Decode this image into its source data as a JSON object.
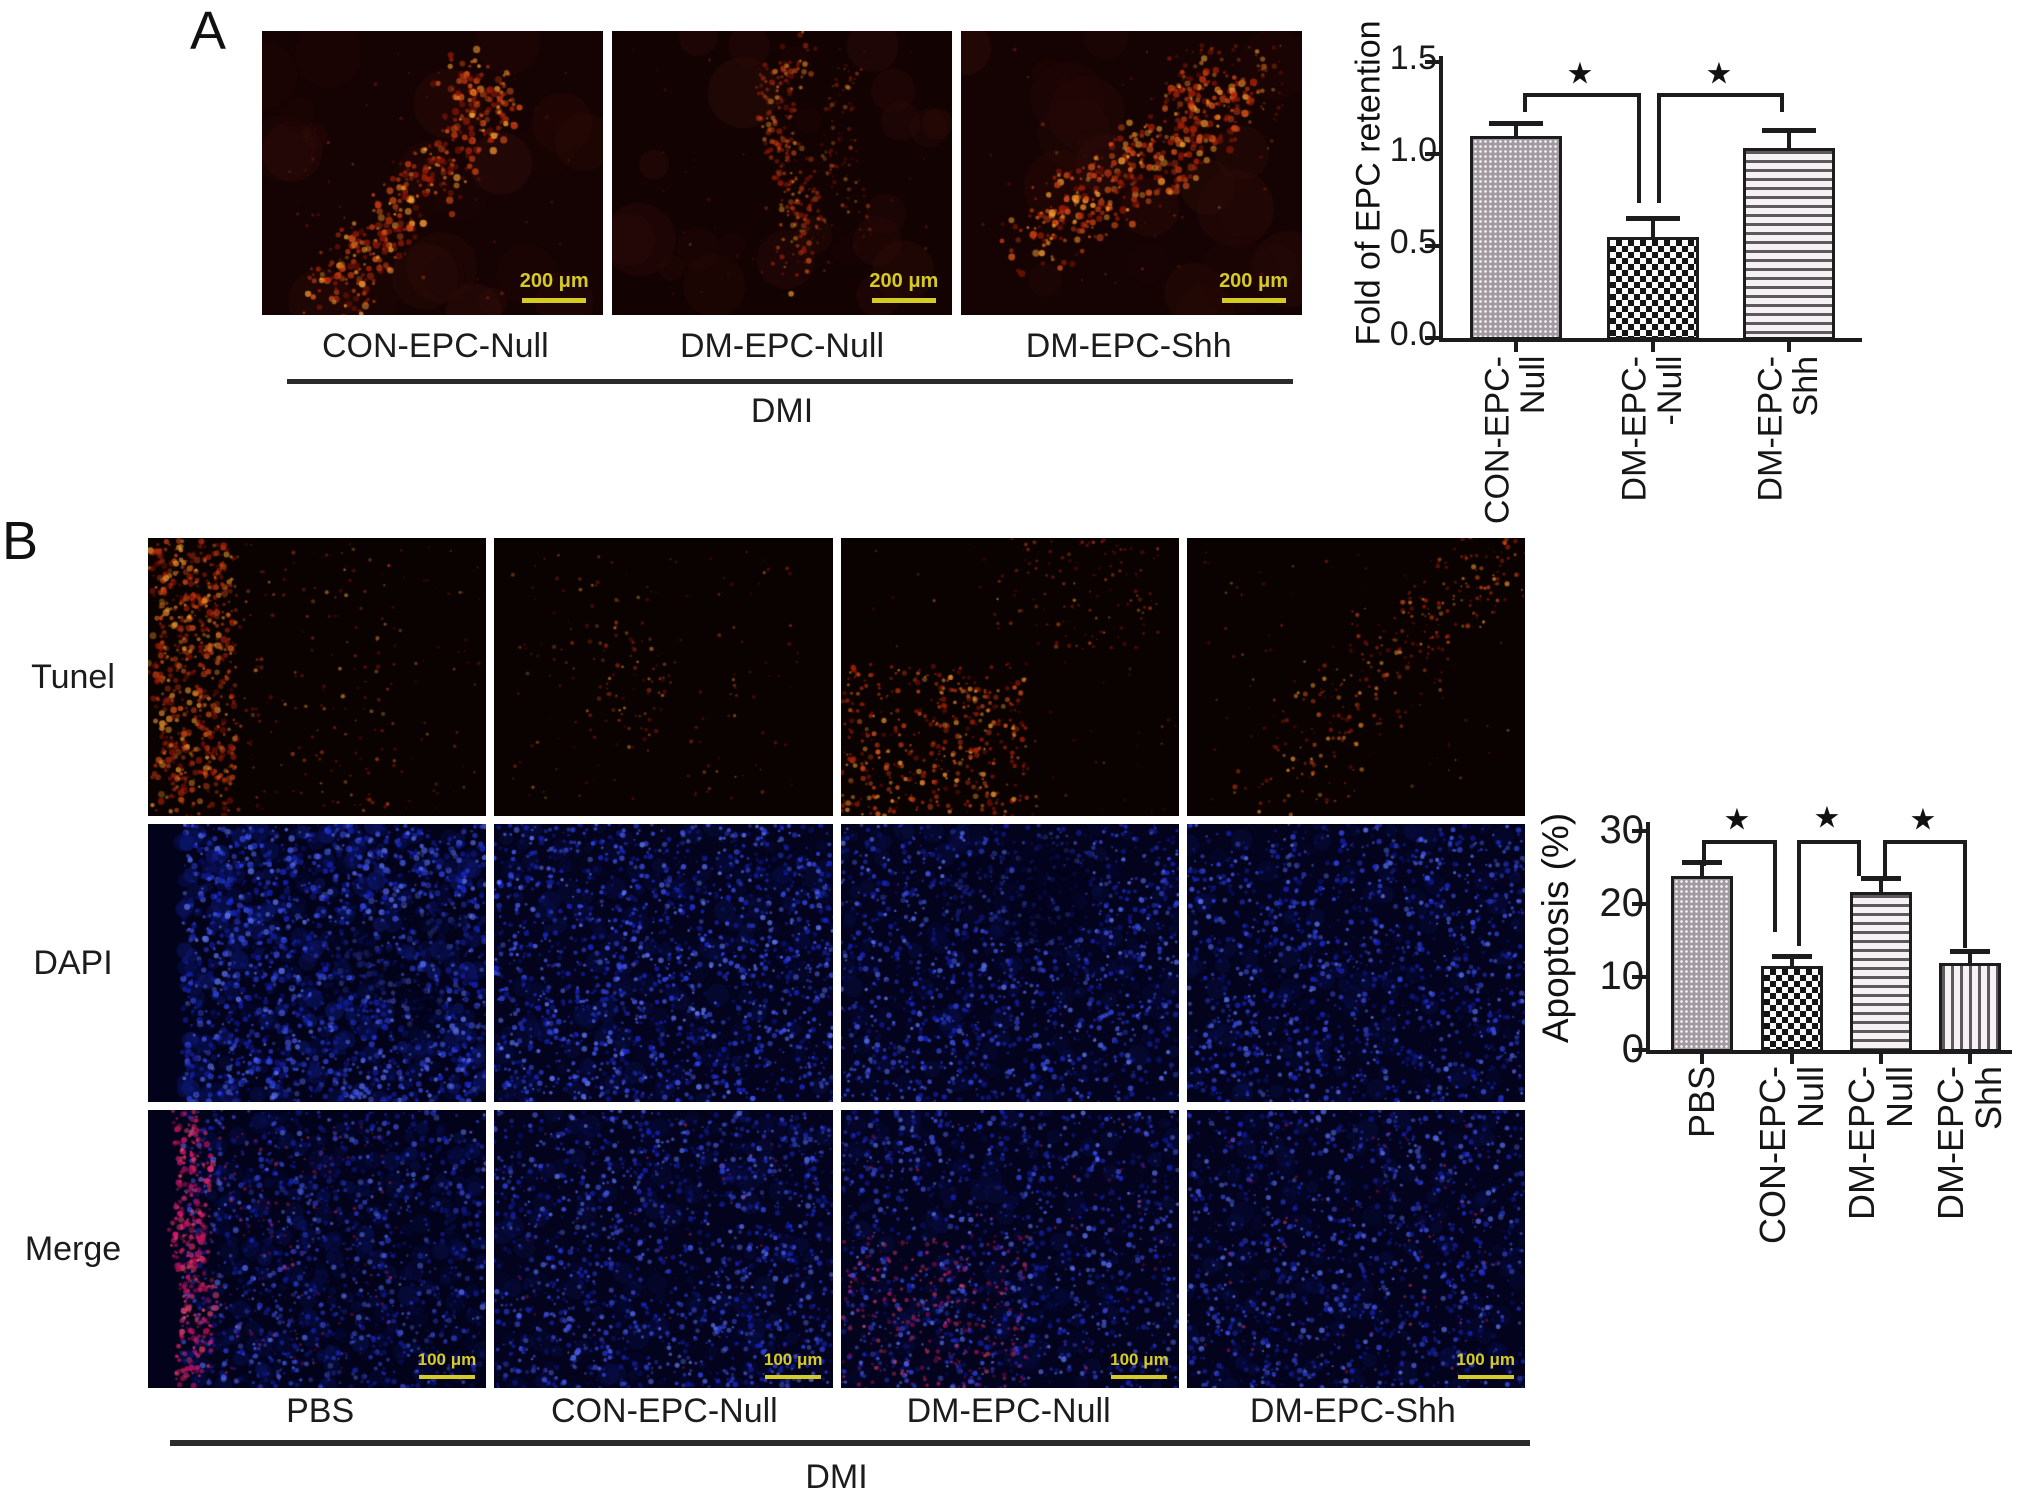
{
  "figure": {
    "panelA": {
      "label": "A",
      "image_labels": [
        "CON-EPC-Null",
        "DM-EPC-Null",
        "DM-EPC-Shh"
      ],
      "scale_bar_label": "200 μm",
      "group_label": "DMI"
    },
    "panelB": {
      "label": "B",
      "row_labels": [
        "Tunel",
        "DAPI",
        "Merge"
      ],
      "column_labels": [
        "PBS",
        "CON-EPC-Null",
        "DM-EPC-Null",
        "DM-EPC-Shh"
      ],
      "scale_bar_label": "100 μm",
      "group_label": "DMI"
    }
  },
  "colors": {
    "scale_bar": "#d6cb22",
    "axis": "#1c1c1c",
    "tunel_red": "#d9541a",
    "dapi_blue": "#2e46e6",
    "merge_pink": "#e01878"
  },
  "chart_data": [
    {
      "type": "bar",
      "panel": "A",
      "title": "",
      "xlabel": "",
      "ylabel": "Fold of EPC retention",
      "categories": [
        "CON-EPC-\nNull",
        "DM-EPC-\n-Null",
        "DM-EPC-\nShh"
      ],
      "values": [
        1.1,
        0.55,
        1.03
      ],
      "errors": [
        0.07,
        0.1,
        0.1
      ],
      "ylim": [
        0,
        1.5
      ],
      "yticks": [
        0,
        0.5,
        1,
        1.5
      ],
      "ytick_labels": [
        "0.0",
        "0.5",
        "1.0",
        "1.5"
      ],
      "grid": false,
      "legend": "none",
      "bar_patterns": [
        "fine-dots",
        "checkerboard",
        "horizontal-lines"
      ],
      "significance": [
        {
          "between": [
            0,
            1
          ],
          "label": "★"
        },
        {
          "between": [
            1,
            2
          ],
          "label": "★"
        }
      ]
    },
    {
      "type": "bar",
      "panel": "B",
      "title": "",
      "xlabel": "",
      "ylabel": "Apoptosis (%)",
      "categories": [
        "PBS",
        "CON-EPC-\nNull",
        "DM-EPC-\nNull",
        "DM-EPC-\nShh"
      ],
      "values": [
        23.8,
        11.5,
        21.7,
        11.9
      ],
      "errors": [
        2.0,
        1.4,
        1.9,
        1.7
      ],
      "ylim": [
        0,
        30
      ],
      "yticks": [
        0,
        10,
        20,
        30
      ],
      "ytick_labels": [
        "0",
        "10",
        "20",
        "30"
      ],
      "grid": false,
      "legend": "none",
      "bar_patterns": [
        "fine-dots",
        "checkerboard",
        "horizontal-lines",
        "vertical-lines"
      ],
      "significance": [
        {
          "between": [
            0,
            1
          ],
          "label": "★"
        },
        {
          "between": [
            1,
            2
          ],
          "label": "★"
        },
        {
          "between": [
            2,
            3
          ],
          "label": "★"
        }
      ]
    }
  ]
}
